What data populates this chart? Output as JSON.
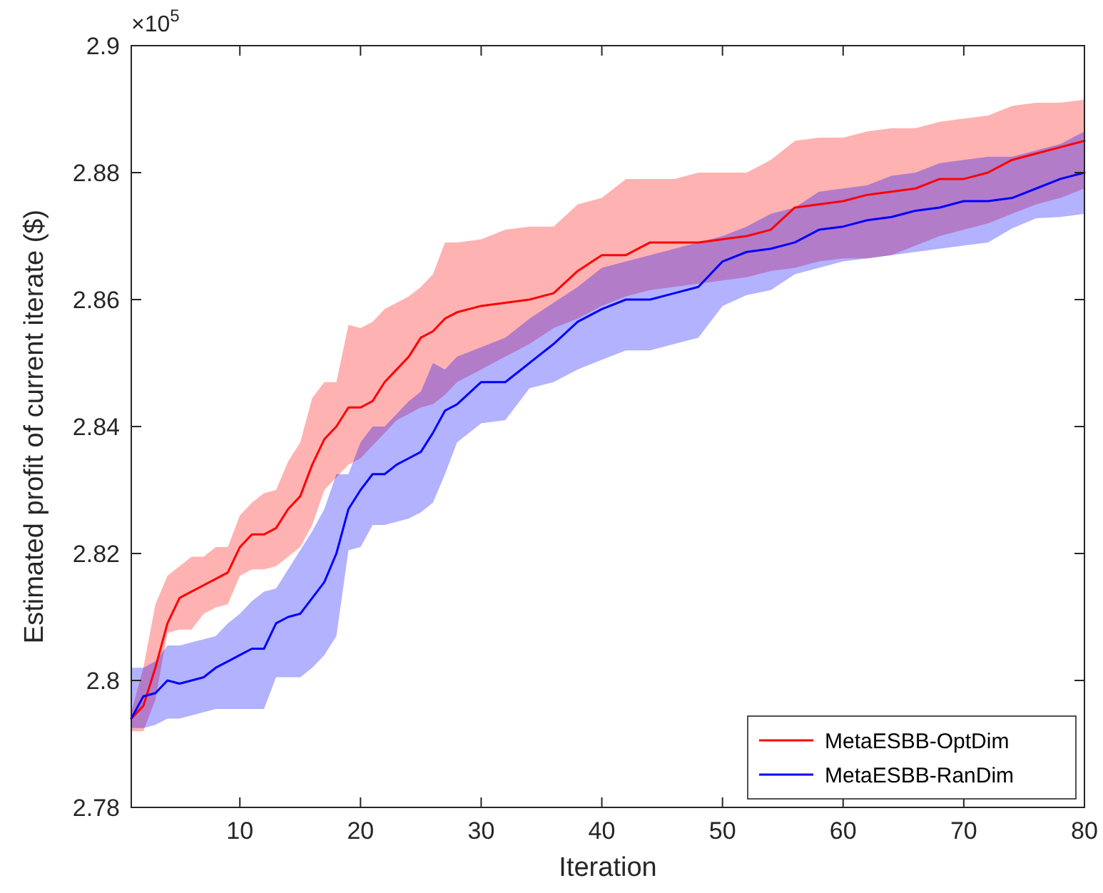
{
  "chart_data": {
    "type": "line",
    "xlabel": "Iteration",
    "ylabel": "Estimated profit of current iterate ($)",
    "annotations": [
      "×10$^{5}$"
    ],
    "x": [
      1,
      2,
      3,
      4,
      5,
      6,
      7,
      8,
      9,
      10,
      11,
      12,
      13,
      14,
      15,
      16,
      17,
      18,
      19,
      20,
      21,
      22,
      23,
      24,
      25,
      26,
      27,
      28,
      30,
      32,
      34,
      36,
      38,
      40,
      42,
      44,
      46,
      48,
      50,
      52,
      54,
      56,
      58,
      60,
      62,
      64,
      66,
      68,
      70,
      72,
      74,
      76,
      78,
      80
    ],
    "xlim": [
      1,
      80
    ],
    "xticks": [
      10,
      20,
      30,
      40,
      50,
      60,
      70,
      80
    ],
    "ylim": [
      2.78,
      2.9
    ],
    "yticks": [
      2.78,
      2.8,
      2.82,
      2.84,
      2.86,
      2.88,
      2.9
    ],
    "grid": false,
    "legend": "bottom right",
    "series": [
      {
        "name": "MetaESBB-OptDim",
        "color": "#ff0000",
        "values": [
          2.794,
          2.796,
          2.802,
          2.809,
          2.813,
          2.814,
          2.815,
          2.816,
          2.817,
          2.821,
          2.823,
          2.823,
          2.824,
          2.827,
          2.829,
          2.834,
          2.838,
          2.84,
          2.843,
          2.843,
          2.844,
          2.847,
          2.849,
          2.851,
          2.854,
          2.855,
          2.857,
          2.858,
          2.859,
          2.8595,
          2.86,
          2.861,
          2.8645,
          2.867,
          2.867,
          2.869,
          2.869,
          2.869,
          2.8695,
          2.87,
          2.871,
          2.8745,
          2.875,
          2.8755,
          2.8765,
          2.877,
          2.8775,
          2.879,
          2.879,
          2.88,
          2.882,
          2.883,
          2.884,
          2.885
        ],
        "lower": [
          2.792,
          2.792,
          2.797,
          2.8075,
          2.808,
          2.808,
          2.8105,
          2.8115,
          2.812,
          2.8165,
          2.8175,
          2.8175,
          2.818,
          2.8195,
          2.821,
          2.8245,
          2.83,
          2.832,
          2.834,
          2.835,
          2.837,
          2.839,
          2.841,
          2.842,
          2.843,
          2.8435,
          2.845,
          2.847,
          2.849,
          2.851,
          2.853,
          2.8555,
          2.857,
          2.859,
          2.8605,
          2.8615,
          2.862,
          2.8625,
          2.863,
          2.8635,
          2.8645,
          2.865,
          2.866,
          2.8665,
          2.8665,
          2.867,
          2.8685,
          2.87,
          2.871,
          2.872,
          2.8735,
          2.875,
          2.876,
          2.8775
        ],
        "upper": [
          2.795,
          2.802,
          2.812,
          2.8165,
          2.818,
          2.8195,
          2.8195,
          2.821,
          2.821,
          2.826,
          2.828,
          2.8295,
          2.83,
          2.8345,
          2.8375,
          2.8445,
          2.847,
          2.847,
          2.856,
          2.8555,
          2.8565,
          2.8585,
          2.8595,
          2.8605,
          2.862,
          2.864,
          2.869,
          2.869,
          2.8695,
          2.871,
          2.8715,
          2.8715,
          2.875,
          2.876,
          2.879,
          2.879,
          2.879,
          2.88,
          2.88,
          2.88,
          2.882,
          2.885,
          2.8855,
          2.8855,
          2.8865,
          2.887,
          2.887,
          2.888,
          2.8885,
          2.889,
          2.8905,
          2.891,
          2.891,
          2.8915
        ]
      },
      {
        "name": "MetaESBB-RanDim",
        "color": "#0000ff",
        "values": [
          2.794,
          2.7975,
          2.798,
          2.8,
          2.7995,
          2.8,
          2.8005,
          2.802,
          2.803,
          2.804,
          2.805,
          2.805,
          2.809,
          2.81,
          2.8105,
          2.813,
          2.8155,
          2.82,
          2.827,
          2.83,
          2.8325,
          2.8325,
          2.834,
          2.835,
          2.836,
          2.839,
          2.8425,
          2.8435,
          2.847,
          2.847,
          2.85,
          2.853,
          2.8565,
          2.8585,
          2.86,
          2.86,
          2.861,
          2.862,
          2.866,
          2.8675,
          2.868,
          2.869,
          2.871,
          2.8715,
          2.8725,
          2.873,
          2.874,
          2.8745,
          2.8755,
          2.8755,
          2.876,
          2.8775,
          2.879,
          2.88
        ],
        "lower": [
          2.7925,
          2.7925,
          2.793,
          2.794,
          2.794,
          2.7945,
          2.795,
          2.7955,
          2.7955,
          2.7955,
          2.7955,
          2.7955,
          2.8005,
          2.8005,
          2.8005,
          2.802,
          2.804,
          2.807,
          2.8205,
          2.821,
          2.8245,
          2.8245,
          2.825,
          2.8255,
          2.8265,
          2.828,
          2.8325,
          2.8375,
          2.8405,
          2.841,
          2.846,
          2.847,
          2.849,
          2.8505,
          2.852,
          2.852,
          2.853,
          2.854,
          2.859,
          2.8607,
          2.8615,
          2.864,
          2.865,
          2.866,
          2.8665,
          2.867,
          2.8675,
          2.868,
          2.8685,
          2.869,
          2.8712,
          2.8728,
          2.873,
          2.8735
        ],
        "upper": [
          2.802,
          2.802,
          2.803,
          2.8055,
          2.8055,
          2.806,
          2.8065,
          2.807,
          2.809,
          2.8105,
          2.8125,
          2.814,
          2.8145,
          2.8175,
          2.8205,
          2.8235,
          2.827,
          2.8325,
          2.8325,
          2.8375,
          2.84,
          2.84,
          2.842,
          2.844,
          2.8455,
          2.85,
          2.849,
          2.851,
          2.8525,
          2.854,
          2.857,
          2.8595,
          2.862,
          2.865,
          2.866,
          2.867,
          2.868,
          2.869,
          2.87,
          2.8715,
          2.8735,
          2.8745,
          2.877,
          2.8775,
          2.878,
          2.8795,
          2.88,
          2.8815,
          2.882,
          2.8825,
          2.8825,
          2.8835,
          2.8845,
          2.8865
        ]
      }
    ]
  }
}
